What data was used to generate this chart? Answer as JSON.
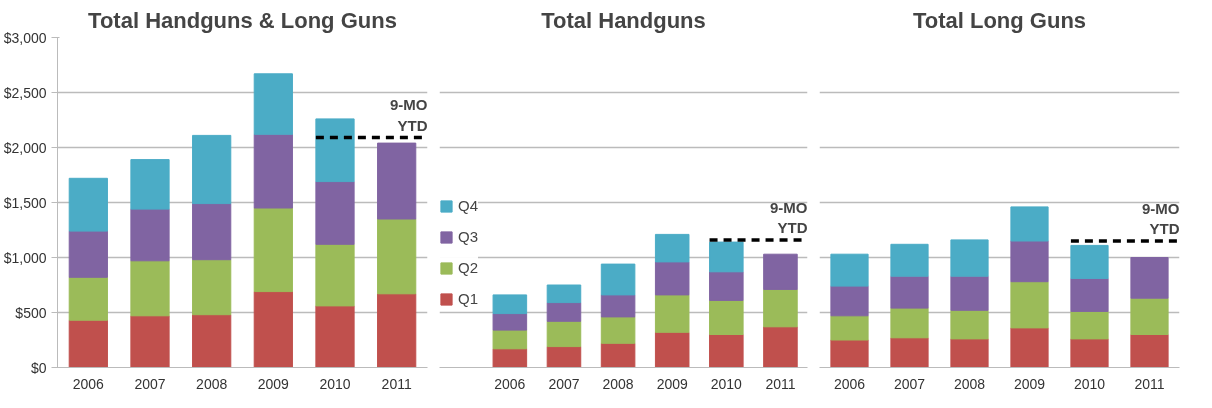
{
  "chart_data": [
    {
      "type": "bar",
      "title": "Total Handguns & Long Guns",
      "stacked": true,
      "categories": [
        "2006",
        "2007",
        "2008",
        "2009",
        "2010",
        "2011"
      ],
      "series": [
        {
          "color": "#c0504d",
          "values": [
            430,
            470,
            480,
            690,
            560,
            670
          ]
        },
        {
          "color": "#9bbb59",
          "values": [
            390,
            500,
            500,
            760,
            560,
            680
          ]
        },
        {
          "color": "#8064a2",
          "values": [
            420,
            470,
            510,
            670,
            570,
            690
          ]
        },
        {
          "color": "#4bacc6",
          "values": [
            480,
            450,
            620,
            550,
            570,
            null
          ]
        }
      ],
      "ylim": [
        0,
        3000
      ],
      "yticks": [
        {
          "value": 0,
          "label": "$0"
        },
        {
          "value": 500,
          "label": "$500"
        },
        {
          "value": 1000,
          "label": "$1,000"
        },
        {
          "value": 1500,
          "label": "$1,500"
        },
        {
          "value": 2000,
          "label": "$2,000"
        },
        {
          "value": 2500,
          "label": "$2,500"
        },
        {
          "value": 3000,
          "label": "$3,000"
        }
      ],
      "grid": "y",
      "ref_lines": [
        {
          "axis": "y",
          "value": 2090,
          "label": "9-MO YTD",
          "line_style": "dashed",
          "color": "#000000"
        }
      ]
    },
    {
      "type": "bar",
      "title": "Total Handguns",
      "stacked": true,
      "categories": [
        "2006",
        "2007",
        "2008",
        "2009",
        "2010",
        "2011"
      ],
      "series": [
        {
          "name": "Q1",
          "color": "#c0504d",
          "values": [
            170,
            190,
            220,
            320,
            300,
            370
          ]
        },
        {
          "name": "Q2",
          "color": "#9bbb59",
          "values": [
            170,
            230,
            240,
            340,
            310,
            340
          ]
        },
        {
          "name": "Q3",
          "color": "#8064a2",
          "values": [
            150,
            170,
            200,
            300,
            260,
            320
          ]
        },
        {
          "name": "Q4",
          "color": "#4bacc6",
          "values": [
            170,
            160,
            280,
            250,
            270,
            null
          ]
        }
      ],
      "ylim": [
        0,
        3000
      ],
      "yticks": [
        0,
        500,
        1000,
        1500,
        2000,
        2500,
        3000
      ],
      "tick_labels": "x",
      "grid": "y",
      "legend": "left",
      "ref_lines": [
        {
          "axis": "y",
          "value": 1160,
          "label": "9-MO YTD",
          "line_style": "dashed",
          "color": "#000000"
        }
      ]
    },
    {
      "type": "bar",
      "title": "Total Long Guns",
      "stacked": true,
      "categories": [
        "2006",
        "2007",
        "2008",
        "2009",
        "2010",
        "2011"
      ],
      "series": [
        {
          "color": "#c0504d",
          "values": [
            250,
            270,
            260,
            360,
            260,
            300
          ]
        },
        {
          "color": "#9bbb59",
          "values": [
            220,
            270,
            260,
            420,
            250,
            330
          ]
        },
        {
          "color": "#8064a2",
          "values": [
            270,
            290,
            310,
            370,
            300,
            370
          ]
        },
        {
          "color": "#4bacc6",
          "values": [
            290,
            290,
            330,
            310,
            300,
            null
          ]
        }
      ],
      "ylim": [
        0,
        3000
      ],
      "yticks": [
        0,
        500,
        1000,
        1500,
        2000,
        2500,
        3000
      ],
      "tick_labels": "x",
      "grid": "y",
      "ref_lines": [
        {
          "axis": "y",
          "value": 1150,
          "label": "9-MO YTD",
          "line_style": "dashed",
          "color": "#000000"
        }
      ]
    }
  ]
}
